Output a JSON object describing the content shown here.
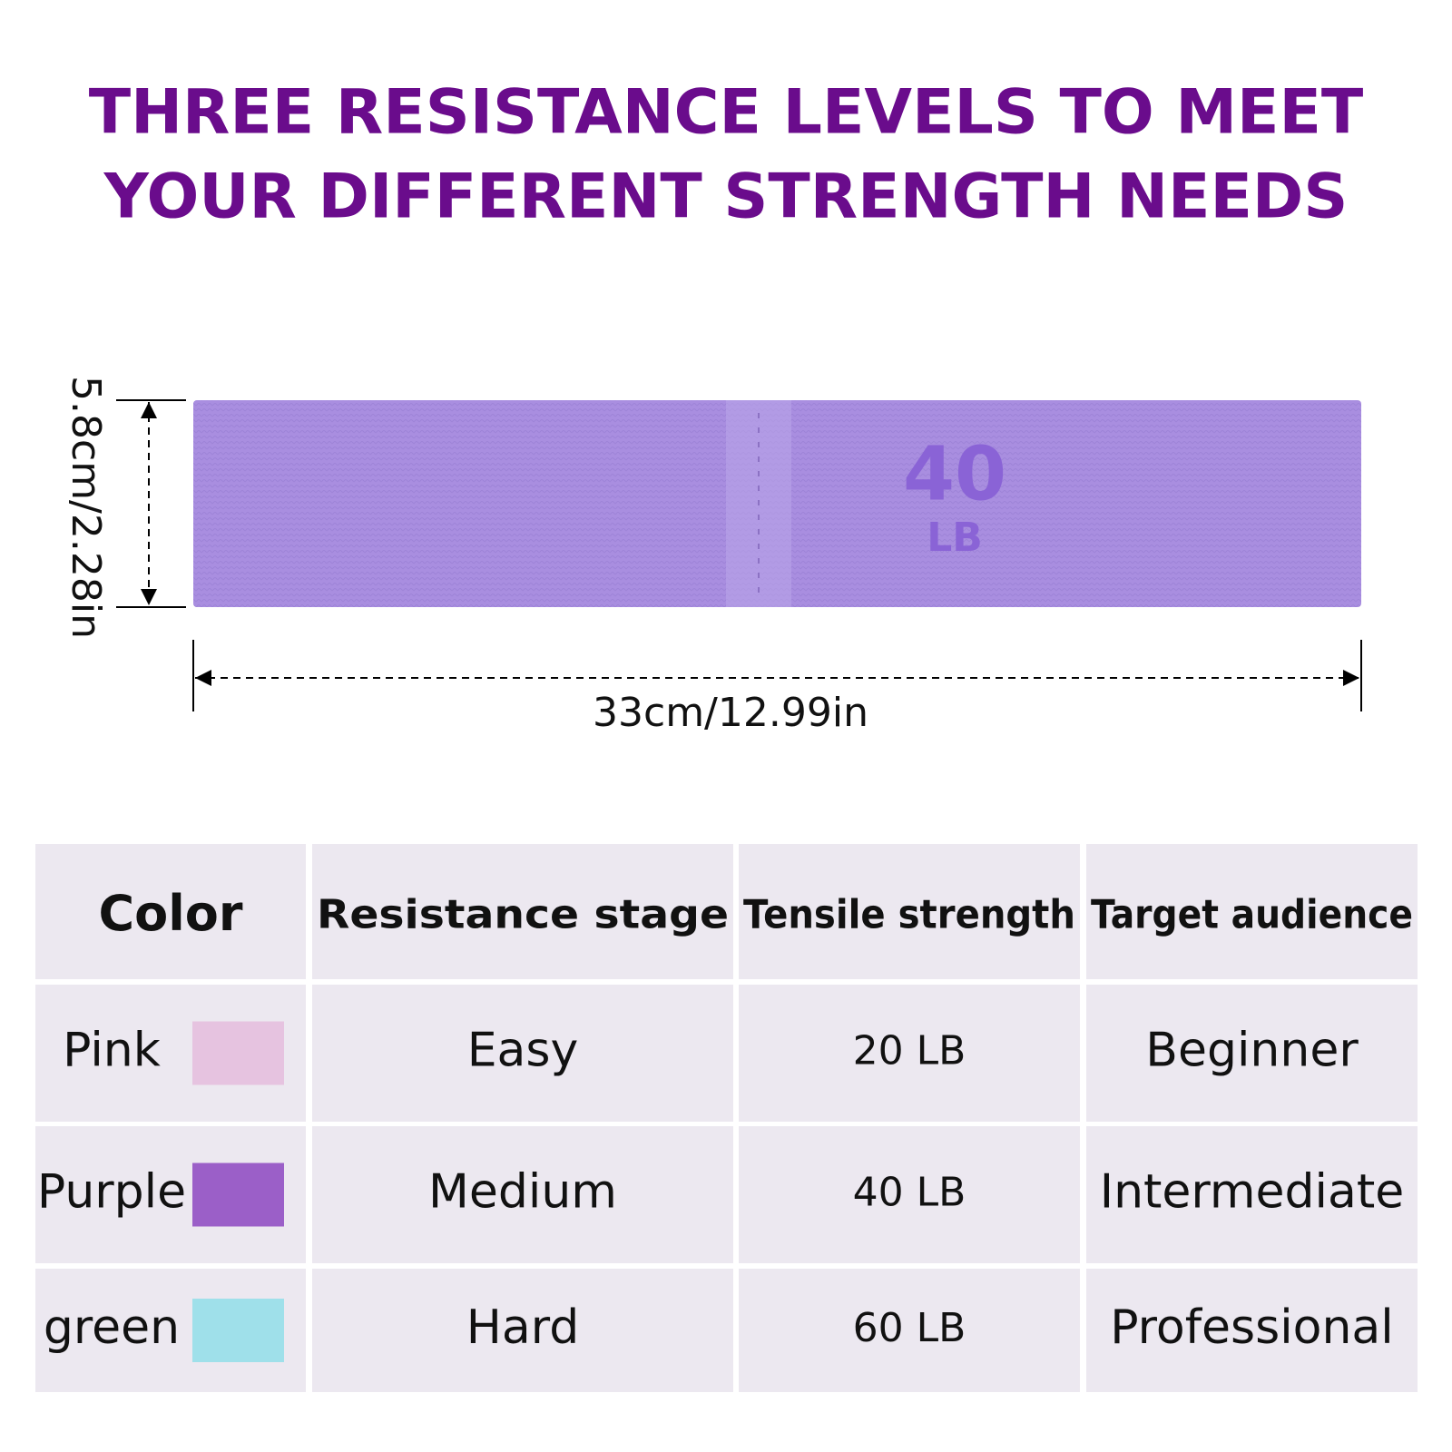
{
  "header": {
    "title_lines": [
      "THREE RESISTANCE LEVELS TO MEET",
      "YOUR DIFFERENT STRENGTH NEEDS"
    ]
  },
  "band": {
    "label_number": "40",
    "label_unit": "LB",
    "height": "5.8cm/2.28in",
    "width": "33cm/12.99in",
    "color": "#a98ee0"
  },
  "table": {
    "headers": [
      "Color",
      "Resistance stage",
      "Tensile strength",
      "Target audience"
    ],
    "rows": [
      [
        "Pink",
        "Easy",
        "20 LB",
        "Beginner"
      ],
      [
        "Purple",
        "Medium",
        "40 LB",
        "Intermediate"
      ],
      [
        "green",
        "Hard",
        "60 LB",
        "Professional"
      ]
    ],
    "swatches": [
      "#e6c3e0",
      "#9b5fc8",
      "#9fe0ea"
    ]
  }
}
